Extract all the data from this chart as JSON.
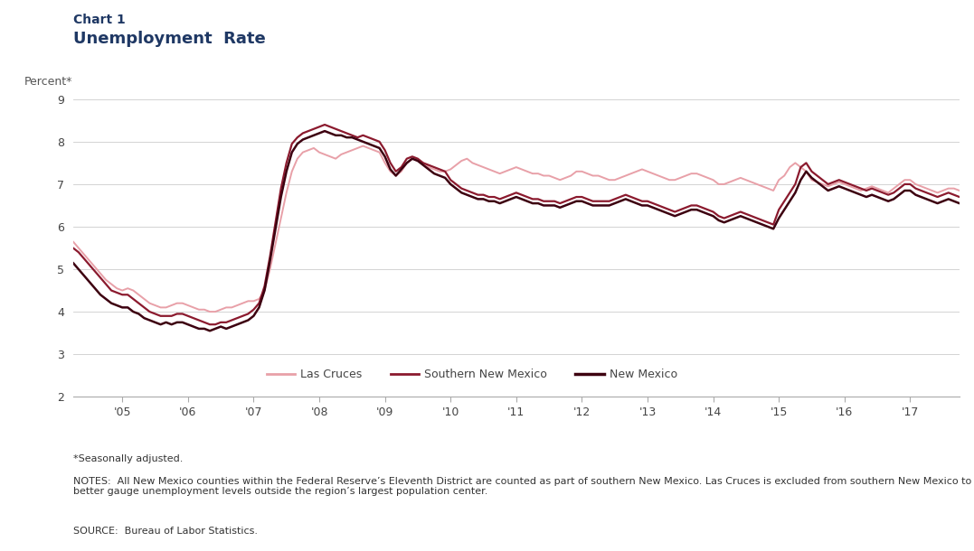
{
  "title_line1": "Chart 1",
  "title_line2": "Unemployment  Rate",
  "ylabel": "Percent*",
  "title_color": "#1F3864",
  "footnote1": "*Seasonally adjusted.",
  "footnote2": "NOTES:  All New Mexico counties within the Federal Reserve’s Eleventh District are counted as part of southern New Mexico. Las Cruces is excluded from southern New Mexico to better gauge unemployment levels outside the region’s largest population center.",
  "footnote3": "SOURCE:  Bureau of Labor Statistics.",
  "ylim": [
    2,
    9
  ],
  "yticks": [
    2,
    3,
    4,
    5,
    6,
    7,
    8,
    9
  ],
  "xtick_labels": [
    "'05",
    "'06",
    "'07",
    "'08",
    "'09",
    "'10",
    "'11",
    "'12",
    "'13",
    "'14",
    "'15",
    "'16",
    "'17"
  ],
  "legend_labels": [
    "Las Cruces",
    "Southern New Mexico",
    "New Mexico"
  ],
  "colors": {
    "las_cruces": "#E8A0A8",
    "southern_nm": "#8B1A2E",
    "new_mexico": "#3D0010"
  },
  "line_widths": {
    "las_cruces": 1.4,
    "southern_nm": 1.6,
    "new_mexico": 1.8
  },
  "las_cruces": [
    5.95,
    5.85,
    5.75,
    5.65,
    5.5,
    5.35,
    5.2,
    5.05,
    4.9,
    4.75,
    4.65,
    4.55,
    4.5,
    4.55,
    4.5,
    4.4,
    4.3,
    4.2,
    4.15,
    4.1,
    4.1,
    4.15,
    4.2,
    4.2,
    4.15,
    4.1,
    4.05,
    4.05,
    4.0,
    4.0,
    4.05,
    4.1,
    4.1,
    4.15,
    4.2,
    4.25,
    4.25,
    4.3,
    4.5,
    5.0,
    5.6,
    6.2,
    6.8,
    7.3,
    7.6,
    7.75,
    7.8,
    7.85,
    7.75,
    7.7,
    7.65,
    7.6,
    7.7,
    7.75,
    7.8,
    7.85,
    7.9,
    7.85,
    7.8,
    7.75,
    7.5,
    7.3,
    7.2,
    7.3,
    7.5,
    7.6,
    7.55,
    7.5,
    7.4,
    7.35,
    7.3,
    7.3,
    7.35,
    7.45,
    7.55,
    7.6,
    7.5,
    7.45,
    7.4,
    7.35,
    7.3,
    7.25,
    7.3,
    7.35,
    7.4,
    7.35,
    7.3,
    7.25,
    7.25,
    7.2,
    7.2,
    7.15,
    7.1,
    7.15,
    7.2,
    7.3,
    7.3,
    7.25,
    7.2,
    7.2,
    7.15,
    7.1,
    7.1,
    7.15,
    7.2,
    7.25,
    7.3,
    7.35,
    7.3,
    7.25,
    7.2,
    7.15,
    7.1,
    7.1,
    7.15,
    7.2,
    7.25,
    7.25,
    7.2,
    7.15,
    7.1,
    7.0,
    7.0,
    7.05,
    7.1,
    7.15,
    7.1,
    7.05,
    7.0,
    6.95,
    6.9,
    6.85,
    7.1,
    7.2,
    7.4,
    7.5,
    7.4,
    7.3,
    7.1,
    7.05,
    7.0,
    6.95,
    7.0,
    7.05,
    7.0,
    6.95,
    6.9,
    6.85,
    6.9,
    6.95,
    6.9,
    6.85,
    6.8,
    6.9,
    7.0,
    7.1,
    7.1,
    7.0,
    6.95,
    6.9,
    6.85,
    6.8,
    6.85,
    6.9,
    6.9,
    6.85,
    6.9,
    6.95,
    7.0,
    6.95,
    6.9,
    6.85,
    6.8,
    6.9,
    6.9,
    6.85,
    6.9,
    7.0,
    7.1,
    7.1,
    7.05,
    7.0,
    6.95,
    6.9,
    6.85,
    6.8,
    6.9,
    6.95,
    7.0,
    6.9,
    6.85,
    6.9
  ],
  "southern_nm": [
    5.8,
    5.7,
    5.6,
    5.5,
    5.4,
    5.25,
    5.1,
    4.95,
    4.8,
    4.65,
    4.5,
    4.45,
    4.4,
    4.4,
    4.3,
    4.2,
    4.1,
    4.0,
    3.95,
    3.9,
    3.9,
    3.9,
    3.95,
    3.95,
    3.9,
    3.85,
    3.8,
    3.75,
    3.7,
    3.7,
    3.75,
    3.75,
    3.8,
    3.85,
    3.9,
    3.95,
    4.05,
    4.2,
    4.6,
    5.3,
    6.1,
    6.9,
    7.5,
    7.95,
    8.1,
    8.2,
    8.25,
    8.3,
    8.35,
    8.4,
    8.35,
    8.3,
    8.25,
    8.2,
    8.15,
    8.1,
    8.15,
    8.1,
    8.05,
    8.0,
    7.8,
    7.5,
    7.3,
    7.4,
    7.6,
    7.65,
    7.6,
    7.5,
    7.45,
    7.4,
    7.35,
    7.3,
    7.1,
    7.0,
    6.9,
    6.85,
    6.8,
    6.75,
    6.75,
    6.7,
    6.7,
    6.65,
    6.7,
    6.75,
    6.8,
    6.75,
    6.7,
    6.65,
    6.65,
    6.6,
    6.6,
    6.6,
    6.55,
    6.6,
    6.65,
    6.7,
    6.7,
    6.65,
    6.6,
    6.6,
    6.6,
    6.6,
    6.65,
    6.7,
    6.75,
    6.7,
    6.65,
    6.6,
    6.6,
    6.55,
    6.5,
    6.45,
    6.4,
    6.35,
    6.4,
    6.45,
    6.5,
    6.5,
    6.45,
    6.4,
    6.35,
    6.25,
    6.2,
    6.25,
    6.3,
    6.35,
    6.3,
    6.25,
    6.2,
    6.15,
    6.1,
    6.05,
    6.4,
    6.6,
    6.8,
    7.0,
    7.4,
    7.5,
    7.3,
    7.2,
    7.1,
    7.0,
    7.05,
    7.1,
    7.05,
    7.0,
    6.95,
    6.9,
    6.85,
    6.9,
    6.85,
    6.8,
    6.75,
    6.8,
    6.9,
    7.0,
    7.0,
    6.9,
    6.85,
    6.8,
    6.75,
    6.7,
    6.75,
    6.8,
    6.75,
    6.7,
    6.7,
    6.75,
    6.7,
    6.65,
    6.6,
    6.55,
    6.5,
    6.55,
    6.5,
    6.45,
    6.5,
    6.55,
    6.6,
    6.6,
    6.55,
    6.5,
    6.45,
    6.4,
    6.35,
    6.3,
    6.4,
    6.45,
    6.4,
    6.35,
    6.3,
    6.25
  ],
  "new_mexico": [
    5.45,
    5.35,
    5.25,
    5.15,
    5.0,
    4.85,
    4.7,
    4.55,
    4.4,
    4.3,
    4.2,
    4.15,
    4.1,
    4.1,
    4.0,
    3.95,
    3.85,
    3.8,
    3.75,
    3.7,
    3.75,
    3.7,
    3.75,
    3.75,
    3.7,
    3.65,
    3.6,
    3.6,
    3.55,
    3.6,
    3.65,
    3.6,
    3.65,
    3.7,
    3.75,
    3.8,
    3.9,
    4.1,
    4.5,
    5.2,
    5.95,
    6.7,
    7.3,
    7.75,
    7.95,
    8.05,
    8.1,
    8.15,
    8.2,
    8.25,
    8.2,
    8.15,
    8.15,
    8.1,
    8.1,
    8.05,
    8.0,
    7.95,
    7.9,
    7.85,
    7.65,
    7.35,
    7.2,
    7.35,
    7.5,
    7.6,
    7.55,
    7.45,
    7.35,
    7.25,
    7.2,
    7.15,
    7.0,
    6.9,
    6.8,
    6.75,
    6.7,
    6.65,
    6.65,
    6.6,
    6.6,
    6.55,
    6.6,
    6.65,
    6.7,
    6.65,
    6.6,
    6.55,
    6.55,
    6.5,
    6.5,
    6.5,
    6.45,
    6.5,
    6.55,
    6.6,
    6.6,
    6.55,
    6.5,
    6.5,
    6.5,
    6.5,
    6.55,
    6.6,
    6.65,
    6.6,
    6.55,
    6.5,
    6.5,
    6.45,
    6.4,
    6.35,
    6.3,
    6.25,
    6.3,
    6.35,
    6.4,
    6.4,
    6.35,
    6.3,
    6.25,
    6.15,
    6.1,
    6.15,
    6.2,
    6.25,
    6.2,
    6.15,
    6.1,
    6.05,
    6.0,
    5.95,
    6.2,
    6.4,
    6.6,
    6.8,
    7.1,
    7.3,
    7.15,
    7.05,
    6.95,
    6.85,
    6.9,
    6.95,
    6.9,
    6.85,
    6.8,
    6.75,
    6.7,
    6.75,
    6.7,
    6.65,
    6.6,
    6.65,
    6.75,
    6.85,
    6.85,
    6.75,
    6.7,
    6.65,
    6.6,
    6.55,
    6.6,
    6.65,
    6.6,
    6.55,
    6.55,
    6.6,
    6.55,
    6.5,
    6.45,
    6.4,
    6.35,
    6.4,
    6.35,
    6.3,
    6.35,
    6.4,
    6.45,
    6.45,
    6.4,
    6.35,
    6.3,
    6.25,
    6.2,
    6.15,
    6.25,
    6.3,
    6.25,
    6.2,
    6.15,
    6.2
  ]
}
